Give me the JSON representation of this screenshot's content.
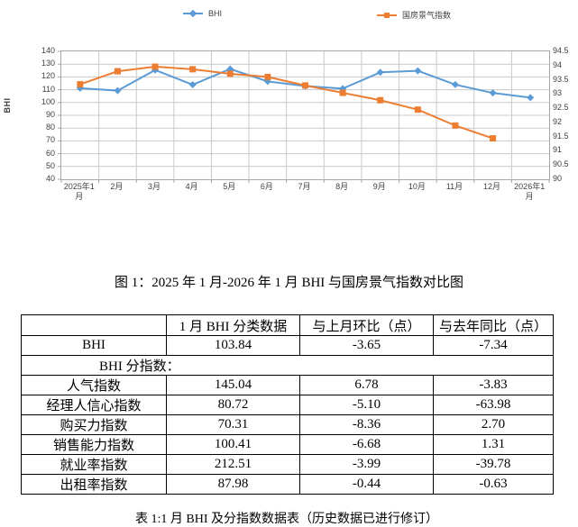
{
  "chart_data": {
    "type": "line",
    "title": "",
    "ylabel_left": "BHI",
    "legend_position": "top",
    "grid": true,
    "x": [
      "2025年1月",
      "2月",
      "3月",
      "4月",
      "5月",
      "6月",
      "7月",
      "8月",
      "9月",
      "10月",
      "11月",
      "12月",
      "2026年1月"
    ],
    "left_axis": {
      "min": 40,
      "max": 140,
      "step": 10,
      "ticks": [
        "140",
        "130",
        "120",
        "110",
        "100",
        "90",
        "80",
        "70",
        "60",
        "50",
        "40"
      ]
    },
    "right_axis": {
      "min": 90,
      "max": 94.5,
      "step": 0.5,
      "ticks": [
        "94.5",
        "94",
        "93.5",
        "93",
        "92.5",
        "92",
        "91.5",
        "91",
        "90.5",
        "90"
      ]
    },
    "series": [
      {
        "name": "BHI",
        "axis": "left",
        "color": "#5B9BD5",
        "marker": "diamond",
        "values": [
          111.18,
          109.3,
          125.4,
          113.9,
          126.2,
          116.5,
          112.9,
          110.9,
          123.6,
          124.8,
          114.0,
          107.49,
          103.84
        ]
      },
      {
        "name": "国房景气指数",
        "axis": "right",
        "color": "#ED7D31",
        "marker": "square",
        "values": [
          93.34,
          93.8,
          93.96,
          93.87,
          93.71,
          93.6,
          93.3,
          93.04,
          92.78,
          92.45,
          91.89,
          91.44,
          null
        ]
      }
    ]
  },
  "figure_caption": "图 1：2025 年 1 月-2026 年 1 月 BHI 与国房景气指数对比图",
  "table": {
    "headers": [
      "",
      "1 月 BHI 分类数据",
      "与上月环比（点）",
      "与去年同比（点）"
    ],
    "rows": [
      {
        "cells": [
          "BHI",
          "103.84",
          "-3.65",
          "-7.34"
        ]
      },
      {
        "merged": "BHI 分指数："
      },
      {
        "cells": [
          "人气指数",
          "145.04",
          "6.78",
          "-3.83"
        ]
      },
      {
        "cells": [
          "经理人信心指数",
          "80.72",
          "-5.10",
          "-63.98"
        ]
      },
      {
        "cells": [
          "购买力指数",
          "70.31",
          "-8.36",
          "2.70"
        ]
      },
      {
        "cells": [
          "销售能力指数",
          "100.41",
          "-6.68",
          "1.31"
        ]
      },
      {
        "cells": [
          "就业率指数",
          "212.51",
          "-3.99",
          "-39.78"
        ]
      },
      {
        "cells": [
          "出租率指数",
          "87.98",
          "-0.44",
          "-0.63"
        ]
      }
    ],
    "caption": "表 1:1 月 BHI 及分指数数据表（历史数据已进行修订）"
  }
}
